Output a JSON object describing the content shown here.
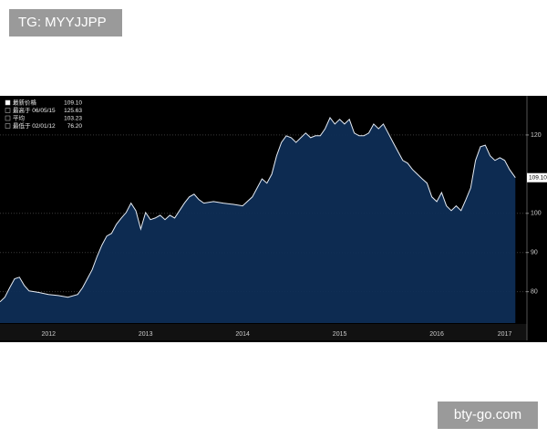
{
  "watermarks": [
    "TG: MYYJJPP",
    "bty-go.com"
  ],
  "chart_data": {
    "type": "area",
    "legend": [
      {
        "label": "最新价格",
        "value": "109.10"
      },
      {
        "label": "最高于 06/05/15",
        "value": "125.63"
      },
      {
        "label": "平均",
        "value": "103.23"
      },
      {
        "label": "最低于 02/01/12",
        "value": "76.20"
      }
    ],
    "last_label": "109.10",
    "x": [
      2012.0,
      2012.05,
      2012.1,
      2012.15,
      2012.2,
      2012.25,
      2012.3,
      2012.4,
      2012.5,
      2012.6,
      2012.7,
      2012.8,
      2012.85,
      2012.9,
      2012.95,
      2013.0,
      2013.05,
      2013.1,
      2013.15,
      2013.2,
      2013.25,
      2013.3,
      2013.35,
      2013.4,
      2013.45,
      2013.5,
      2013.55,
      2013.6,
      2013.65,
      2013.7,
      2013.75,
      2013.8,
      2013.85,
      2013.9,
      2013.95,
      2014.0,
      2014.05,
      2014.1,
      2014.2,
      2014.3,
      2014.4,
      2014.5,
      2014.6,
      2014.65,
      2014.7,
      2014.75,
      2014.8,
      2014.85,
      2014.9,
      2014.95,
      2015.0,
      2015.05,
      2015.1,
      2015.15,
      2015.2,
      2015.25,
      2015.3,
      2015.35,
      2015.4,
      2015.45,
      2015.5,
      2015.55,
      2015.6,
      2015.65,
      2015.7,
      2015.75,
      2015.8,
      2015.85,
      2015.9,
      2015.95,
      2016.0,
      2016.05,
      2016.1,
      2016.15,
      2016.2,
      2016.25,
      2016.3,
      2016.35,
      2016.4,
      2016.45,
      2016.5,
      2016.55,
      2016.6,
      2016.65,
      2016.7,
      2016.75,
      2016.8,
      2016.85,
      2016.9,
      2016.95,
      2017.0,
      2017.05,
      2017.1,
      2017.15,
      2017.2,
      2017.25,
      2017.31
    ],
    "series": [
      {
        "color": "#e6ecf4",
        "fill": "#0e2d55",
        "values": [
          77.4,
          78.6,
          81,
          83.3,
          83.7,
          81.6,
          80.2,
          79.8,
          79.3,
          79,
          78.6,
          79.3,
          81,
          83.3,
          85.6,
          89,
          91.9,
          94.2,
          94.9,
          97.2,
          98.8,
          100.2,
          102.6,
          100.7,
          96,
          100.2,
          98.4,
          98.8,
          99.5,
          98.4,
          99.5,
          98.8,
          100.7,
          102.6,
          104.2,
          104.9,
          103.5,
          102.6,
          103,
          102.6,
          102.3,
          101.9,
          104.2,
          106.5,
          108.8,
          107.7,
          110,
          114.7,
          118.1,
          119.8,
          119.3,
          118.1,
          119.3,
          120.5,
          119.3,
          119.8,
          119.8,
          121.6,
          124.4,
          122.8,
          124,
          122.8,
          124,
          120.5,
          119.8,
          119.8,
          120.5,
          122.8,
          121.6,
          122.8,
          120.5,
          118.1,
          115.8,
          113.5,
          112.8,
          111.2,
          110,
          108.8,
          107.7,
          104.2,
          103,
          105.3,
          101.9,
          100.7,
          101.9,
          100.7,
          103.5,
          106.5,
          113.5,
          117,
          117.4,
          114.7,
          113.5,
          114.2,
          113.5,
          111.2,
          109.1
        ]
      }
    ],
    "xlim": [
      2012,
      2017.42
    ],
    "xticks": [
      {
        "value": 2012.5,
        "label": "2012"
      },
      {
        "value": 2013.5,
        "label": "2013"
      },
      {
        "value": 2014.5,
        "label": "2014"
      },
      {
        "value": 2015.5,
        "label": "2015"
      },
      {
        "value": 2016.5,
        "label": "2016"
      },
      {
        "value": 2017.2,
        "label": "2017"
      }
    ],
    "ylim": [
      72,
      130
    ],
    "yticks": [
      80,
      90,
      100,
      120
    ],
    "grid": true
  }
}
